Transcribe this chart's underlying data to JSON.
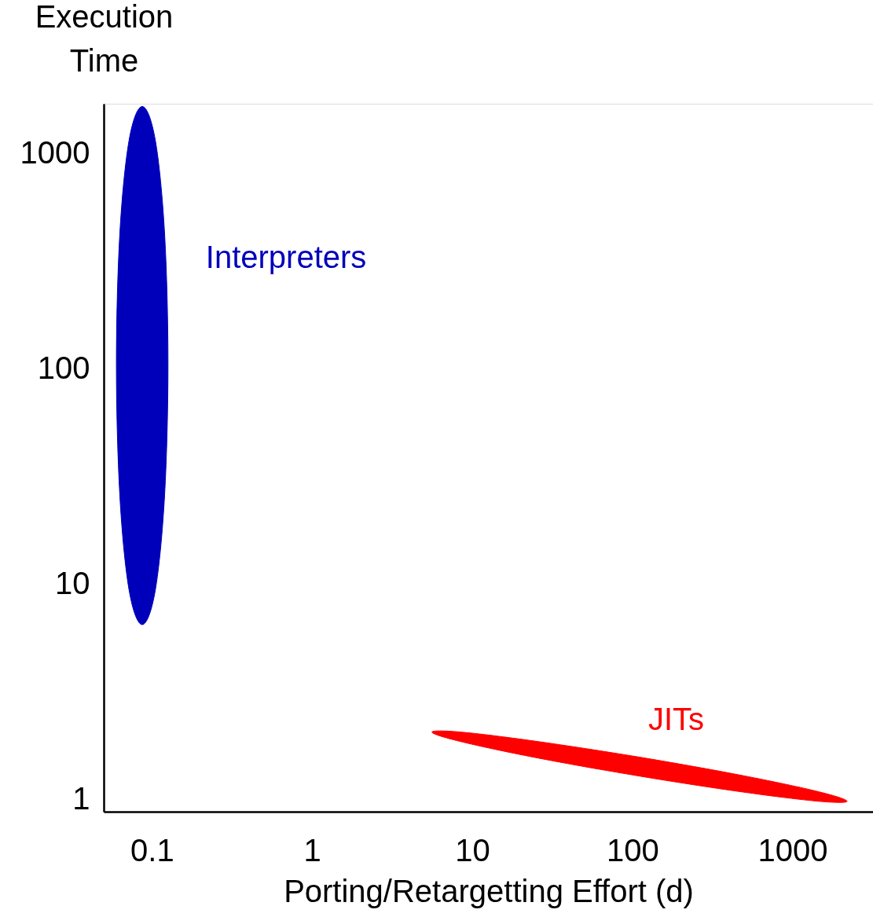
{
  "chart_data": {
    "type": "area",
    "xlabel": "Porting/Retargetting Effort (d)",
    "ylabel": "Execution\nTime",
    "log": "xy",
    "grid": false,
    "xlim": [
      0.05,
      3180
    ],
    "ylim": [
      0.88,
      1700
    ],
    "xticks": [
      0.1,
      1,
      10,
      100,
      1000
    ],
    "yticks": [
      1,
      10,
      100,
      1000
    ],
    "series": [
      {
        "name": "Interpreters",
        "color": "#0000bb",
        "x": [
          0.126,
          0.12,
          0.105,
          0.087,
          0.072,
          0.063,
          0.06,
          0.063,
          0.072,
          0.087,
          0.105,
          0.12
        ],
        "values": [
          105,
          422,
          1150,
          1650,
          1150,
          422,
          105,
          26,
          9.4,
          6.5,
          9.4,
          26
        ]
      },
      {
        "name": "JITs",
        "color": "#ff0000",
        "x": [
          2190,
          1466,
          493,
          111,
          24.9,
          8.4,
          5.6,
          8.4,
          24.9,
          111,
          493,
          1466
        ],
        "values": [
          0.984,
          1.088,
          1.293,
          1.576,
          1.869,
          2.063,
          2.06,
          1.865,
          1.569,
          1.287,
          1.085,
          0.983
        ]
      }
    ]
  }
}
